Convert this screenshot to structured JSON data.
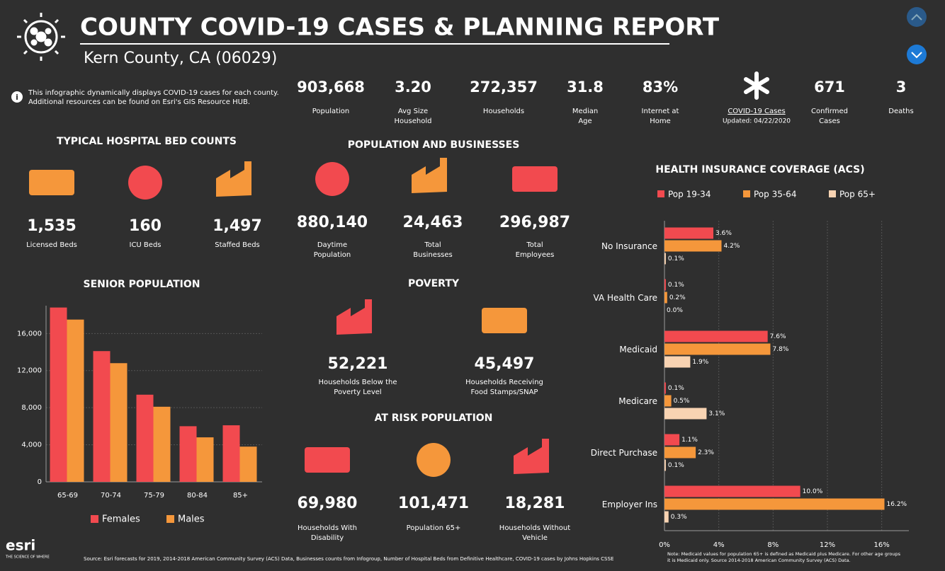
{
  "header": {
    "title": "COUNTY COVID-19 CASES & PLANNING REPORT",
    "subtitle": "Kern County, CA (06029)"
  },
  "info": [
    "This infographic dynamically displays COVID-19 cases for each county.",
    "Additional resources can be found on Esri's GIS Resource HUB."
  ],
  "stats": [
    {
      "value": "903,668",
      "label": [
        "Population"
      ]
    },
    {
      "value": "3.20",
      "label": [
        "Avg Size",
        "Household"
      ]
    },
    {
      "value": "272,357",
      "label": [
        "Households"
      ]
    },
    {
      "value": "31.8",
      "label": [
        "Median",
        "Age"
      ]
    },
    {
      "value": "83%",
      "label": [
        "Internet at",
        "Home"
      ]
    },
    {
      "value": "671",
      "label": [
        "Confirmed",
        "Cases"
      ]
    },
    {
      "value": "3",
      "label": [
        "Deaths"
      ]
    }
  ],
  "covid": {
    "label": "COVID-19 Cases",
    "updated": "Updated: 04/22/2020"
  },
  "sections": [
    {
      "title": "TYPICAL HOSPITAL BED COUNTS",
      "items": [
        {
          "value": "1,535",
          "label": [
            "Licensed Beds"
          ]
        },
        {
          "value": "160",
          "label": [
            "ICU Beds"
          ]
        },
        {
          "value": "1,497",
          "label": [
            "Staffed Beds"
          ]
        }
      ]
    },
    {
      "title": "POPULATION AND BUSINESSES",
      "items": [
        {
          "value": "880,140",
          "label": [
            "Daytime",
            "Population"
          ]
        },
        {
          "value": "24,463",
          "label": [
            "Total",
            "Businesses"
          ]
        },
        {
          "value": "296,987",
          "label": [
            "Total",
            "Employees"
          ]
        }
      ]
    },
    {
      "title": "POVERTY",
      "items": [
        {
          "value": "52,221",
          "label": [
            "Households Below the",
            "Poverty Level"
          ]
        },
        {
          "value": "45,497",
          "label": [
            "Households Receiving",
            "Food Stamps/SNAP"
          ]
        }
      ]
    },
    {
      "title": "AT RISK POPULATION",
      "items": [
        {
          "value": "69,980",
          "label": [
            "Households With",
            "Disability"
          ]
        },
        {
          "value": "101,471",
          "label": [
            "Population 65+"
          ]
        },
        {
          "value": "18,281",
          "label": [
            "Households Without",
            "Vehicle"
          ]
        }
      ]
    }
  ],
  "footer": {
    "source": "Source: Esri forecasts for 2019, 2014-2018 American Community Survey (ACS) Data, Businesses counts from Infogroup, Number of Hospital Beds from Definitive Healthcare, COVID-19 cases by Johns Hopkins CSSE",
    "note": [
      "Note: Medicaid values for population 65+ is defined as Medicaid plus Medicare. For other age groups",
      "it is Medicaid only.  Source 2014-2018 American Community Survey (ACS) Data."
    ],
    "logo": "esri",
    "tagline": "THE SCIENCE OF WHERE"
  },
  "chart_data": [
    {
      "type": "bar",
      "title": "SENIOR POPULATION",
      "categories": [
        "65-69",
        "70-74",
        "75-79",
        "80-84",
        "85+"
      ],
      "series": [
        {
          "name": "Females",
          "color": "#f24a4f",
          "values": [
            18800,
            14100,
            9400,
            6000,
            6100
          ]
        },
        {
          "name": "Males",
          "color": "#f5973b",
          "values": [
            17500,
            12800,
            8100,
            4800,
            3800
          ]
        }
      ],
      "ylim": [
        0,
        19000
      ],
      "yticks": [
        0,
        {
          "value": 4000,
          "label": "4,000"
        },
        {
          "value": 8000,
          "label": "8,000"
        },
        {
          "value": 12000,
          "label": "12,000"
        },
        {
          "value": 16000,
          "label": "16,000"
        }
      ],
      "grid": true,
      "legend": "bottom"
    },
    {
      "type": "hbar",
      "title": "HEALTH INSURANCE COVERAGE (ACS)",
      "categories": [
        "No Insurance",
        "VA Health Care",
        "Medicaid",
        "Medicare",
        "Direct Purchase",
        "Employer Ins"
      ],
      "series": [
        {
          "name": "Pop 19-34",
          "color": "#f24a4f",
          "values": [
            3.6,
            0.1,
            7.6,
            0.1,
            1.1,
            10.0
          ],
          "value_labels": [
            "3.6%",
            "0.1%",
            "7.6%",
            "0.1%",
            "1.1%",
            "10.0%"
          ]
        },
        {
          "name": "Pop 35-64",
          "color": "#f5973b",
          "values": [
            4.2,
            0.2,
            7.8,
            0.5,
            2.3,
            16.2
          ],
          "value_labels": [
            "4.2%",
            "0.2%",
            "7.8%",
            "0.5%",
            "2.3%",
            "16.2%"
          ]
        },
        {
          "name": "Pop 65+",
          "color": "#f8d3b2",
          "values": [
            0.1,
            0.0,
            1.9,
            3.1,
            0.1,
            0.3
          ],
          "value_labels": [
            "0.1%",
            "0.0%",
            "1.9%",
            "3.1%",
            "0.1%",
            "0.3%"
          ]
        }
      ],
      "xlim": [
        0,
        18
      ],
      "xticks": [
        {
          "value": 0,
          "label": "0%"
        },
        {
          "value": 4,
          "label": "4%"
        },
        {
          "value": 8,
          "label": "8%"
        },
        {
          "value": 12,
          "label": "12%"
        },
        {
          "value": 16,
          "label": "16%"
        }
      ],
      "grid": true,
      "legend": "top"
    }
  ]
}
